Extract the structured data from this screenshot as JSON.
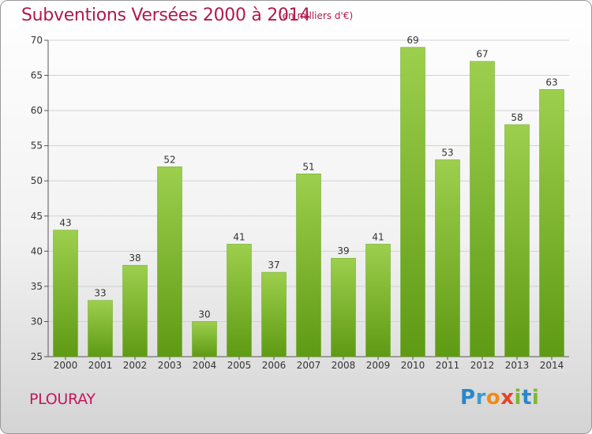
{
  "header": {
    "title": "Subventions Versées 2000 à 2014",
    "subtitle": "(en milliers d'€)"
  },
  "commune": "PLOURAY",
  "logo": {
    "text": "Proxiti"
  },
  "colors": {
    "title": "#b0194f",
    "bar_top": "#9ccf4d",
    "bar_bottom": "#5f9a14"
  },
  "chart_data": {
    "type": "bar",
    "title": "Subventions Versées 2000 à 2014",
    "subtitle": "(en milliers d'€)",
    "categories": [
      "2000",
      "2001",
      "2002",
      "2003",
      "2004",
      "2005",
      "2006",
      "2007",
      "2008",
      "2009",
      "2010",
      "2011",
      "2012",
      "2013",
      "2014"
    ],
    "values": [
      43,
      33,
      38,
      52,
      30,
      41,
      37,
      51,
      39,
      41,
      69,
      53,
      67,
      58,
      63
    ],
    "ylim": [
      25,
      70
    ],
    "yticks": [
      25,
      30,
      35,
      40,
      45,
      50,
      55,
      60,
      65,
      70
    ],
    "grid": true,
    "data_labels": true
  }
}
